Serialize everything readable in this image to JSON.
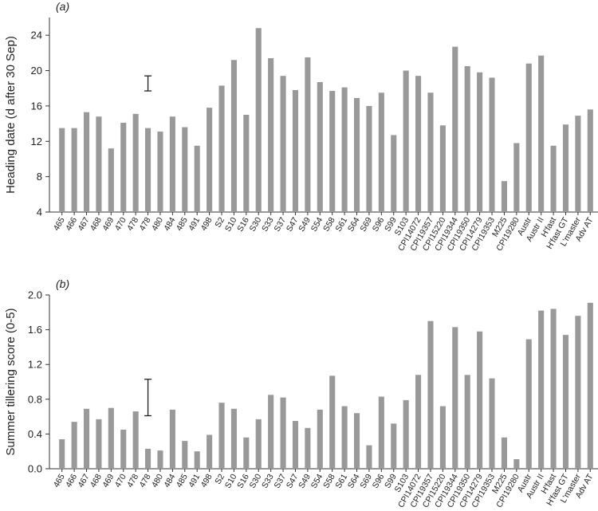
{
  "chart_data": [
    {
      "type": "bar",
      "panel": "(a)",
      "ylabel": "Heading date (d after 30 Sep)",
      "ylim": [
        4,
        26
      ],
      "yticks": [
        4,
        8,
        12,
        16,
        20,
        24
      ],
      "bar_color": "#999999",
      "categories": [
        "465",
        "466",
        "467",
        "468",
        "469",
        "470",
        "478",
        "478",
        "480",
        "484",
        "485",
        "491",
        "498",
        "S2",
        "S10",
        "S16",
        "S30",
        "S33",
        "S37",
        "S47",
        "S49",
        "S54",
        "S58",
        "S61",
        "S64",
        "S69",
        "S96",
        "S99",
        "S103",
        "CPI14072",
        "CPI19357",
        "CPI15220",
        "CPI19344",
        "CPI19350",
        "CPI14279",
        "CPI19353",
        "M225",
        "CPI19280",
        "Austr",
        "Austr II",
        "H'fast",
        "H'fast GT",
        "L'master",
        "Adv AT"
      ],
      "values": [
        13.5,
        13.5,
        15.3,
        14.8,
        11.2,
        14.1,
        15.1,
        13.5,
        13.1,
        14.8,
        13.6,
        11.5,
        15.8,
        18.3,
        21.2,
        15.0,
        24.8,
        21.4,
        19.4,
        17.8,
        21.5,
        18.7,
        17.7,
        18.1,
        16.9,
        16.0,
        17.5,
        12.7,
        20.0,
        19.4,
        17.5,
        13.8,
        22.7,
        20.5,
        19.8,
        19.2,
        7.5,
        11.8,
        20.8,
        21.7,
        11.5,
        13.9,
        14.9,
        15.6
      ],
      "error_bar": {
        "x_category": "478",
        "low": 17.7,
        "high": 19.4
      }
    },
    {
      "type": "bar",
      "panel": "(b)",
      "ylabel": "Summer tillering score (0-5)",
      "ylim": [
        0.0,
        2.0
      ],
      "yticks": [
        "0.0",
        "0.4",
        "0.8",
        "1.2",
        "1.6",
        "2.0"
      ],
      "bar_color": "#999999",
      "categories": [
        "465",
        "466",
        "467",
        "468",
        "469",
        "470",
        "478",
        "478",
        "480",
        "484",
        "485",
        "491",
        "498",
        "S2",
        "S10",
        "S16",
        "S30",
        "S33",
        "S37",
        "S47",
        "S49",
        "S54",
        "S58",
        "S61",
        "S64",
        "S69",
        "S96",
        "S99",
        "S103",
        "CPI14072",
        "CPI19357",
        "CPI15220",
        "CPI19344",
        "CPI19350",
        "CPI14279",
        "CPI19353",
        "M225",
        "CPI19280",
        "Austr",
        "Austr II",
        "H'fast",
        "H'fast GT",
        "L'master",
        "Adv AT"
      ],
      "values": [
        0.34,
        0.54,
        0.69,
        0.57,
        0.7,
        0.45,
        0.66,
        0.23,
        0.21,
        0.68,
        0.32,
        0.2,
        0.39,
        0.76,
        0.69,
        0.36,
        0.57,
        0.85,
        0.82,
        0.55,
        0.47,
        0.68,
        1.07,
        0.72,
        0.64,
        0.27,
        0.83,
        0.52,
        0.79,
        1.08,
        1.7,
        0.72,
        1.63,
        1.08,
        1.58,
        1.04,
        0.36,
        0.11,
        1.49,
        1.82,
        1.84,
        1.54,
        1.76,
        1.91
      ],
      "error_bar": {
        "x_category": "478",
        "low": 0.61,
        "high": 1.03
      }
    }
  ]
}
